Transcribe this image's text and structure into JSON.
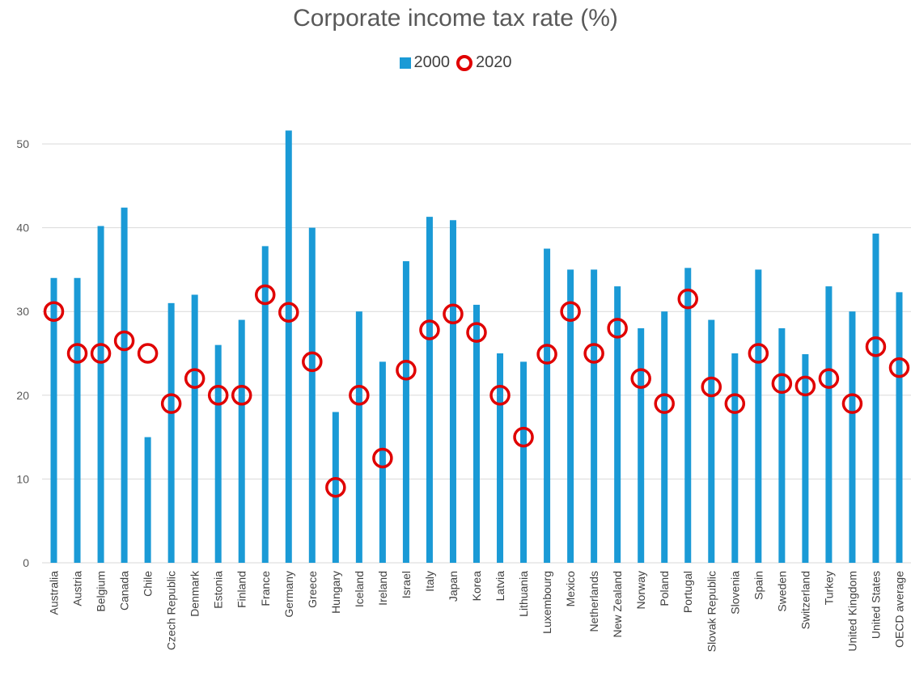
{
  "chart_data": {
    "type": "bar",
    "title": "Corporate income tax rate (%)",
    "xlabel": "",
    "ylabel": "",
    "ylim": [
      0,
      55
    ],
    "yticks": [
      0,
      10,
      20,
      30,
      40,
      50
    ],
    "grid": true,
    "legend_position": "top",
    "categories": [
      "Australia",
      "Austria",
      "Belgium",
      "Canada",
      "Chile",
      "Czech Republic",
      "Denmark",
      "Estonia",
      "Finland",
      "France",
      "Germany",
      "Greece",
      "Hungary",
      "Iceland",
      "Ireland",
      "Israel",
      "Italy",
      "Japan",
      "Korea",
      "Latvia",
      "Lithuania",
      "Luxembourg",
      "Mexico",
      "Netherlands",
      "New Zealand",
      "Norway",
      "Poland",
      "Portugal",
      "Slovak Republic",
      "Slovenia",
      "Spain",
      "Sweden",
      "Switzerland",
      "Turkey",
      "United Kingdom",
      "United States",
      "OECD average"
    ],
    "series": [
      {
        "name": "2000",
        "mark": "bar",
        "color": "#1a9ad6",
        "values": [
          34,
          34,
          40.2,
          42.4,
          15,
          31,
          32,
          26,
          29,
          37.8,
          51.6,
          40,
          18,
          30,
          24,
          36,
          41.3,
          40.9,
          30.8,
          25,
          24,
          37.5,
          35,
          35,
          33,
          28,
          30,
          35.2,
          29,
          25,
          35,
          28,
          24.9,
          33,
          30,
          39.3,
          32.3
        ]
      },
      {
        "name": "2020",
        "mark": "ring",
        "color": "#e00000",
        "values": [
          30,
          25,
          25,
          26.5,
          25,
          19,
          22,
          20,
          20,
          32,
          29.9,
          24,
          9,
          20,
          12.5,
          23,
          27.8,
          29.7,
          27.5,
          20,
          15,
          24.9,
          30,
          25,
          28,
          22,
          19,
          31.5,
          21,
          19,
          25,
          21.4,
          21.1,
          22,
          19,
          25.8,
          23.3
        ]
      }
    ]
  }
}
